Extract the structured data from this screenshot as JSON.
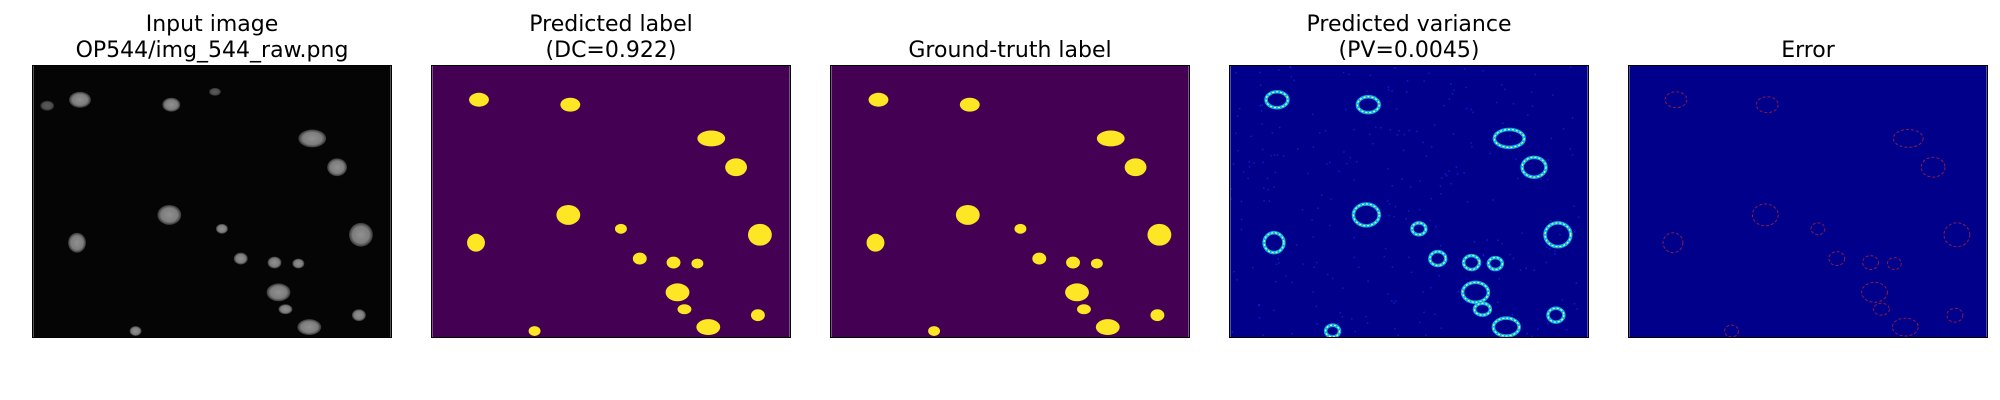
{
  "panels": [
    {
      "title_line1": "Input image",
      "title_line2": "OP544/img_544_raw.png",
      "type": "raw"
    },
    {
      "title_line1": "Predicted label",
      "title_line2": "(DC=0.922)",
      "type": "predicted_label"
    },
    {
      "title_line1": "Ground-truth label",
      "title_line2": "",
      "type": "ground_truth"
    },
    {
      "title_line1": "Predicted variance",
      "title_line2": "(PV=0.0045)",
      "type": "variance"
    },
    {
      "title_line1": "Error",
      "title_line2": "",
      "type": "error"
    }
  ],
  "colors": {
    "raw_background": "#050505",
    "nucleus_gray": "#8a8a8a",
    "label_background": "#440154",
    "label_foreground": "#fde725",
    "variance_background": "#00008b",
    "variance_mid": "#00b5ff",
    "variance_high": "#ffff00",
    "error_background": "#00008b",
    "error_outline": "#b0203a"
  }
}
